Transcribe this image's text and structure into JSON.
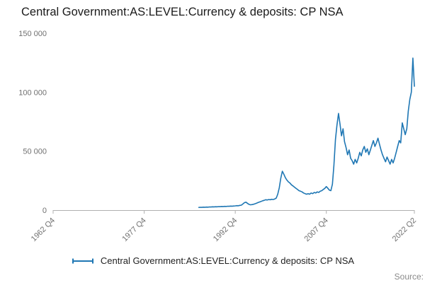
{
  "title": "Central Government:AS:LEVEL:Currency & deposits: CP NSA",
  "legend": {
    "label": "Central Government:AS:LEVEL:Currency & deposits: CP NSA"
  },
  "source_label": "Source:",
  "colors": {
    "line": "#1f77b4",
    "axis": "#b0b0b0",
    "tick_text": "#707070",
    "title_text": "#1a1a1a"
  },
  "chart_data": {
    "type": "line",
    "title": "Central Government:AS:LEVEL:Currency & deposits: CP NSA",
    "xlabel": "",
    "ylabel": "",
    "grid": false,
    "legend_position": "bottom",
    "xlim": [
      1962.75,
      2022.25
    ],
    "ylim": [
      0,
      150000
    ],
    "xticks": {
      "values": [
        1962.75,
        1977.75,
        1992.75,
        2007.75,
        2022.25
      ],
      "labels": [
        "1962 Q4",
        "1977 Q4",
        "1992 Q4",
        "2007 Q4",
        "2022 Q2"
      ]
    },
    "yticks": {
      "values": [
        0,
        50000,
        100000,
        150000
      ],
      "labels": [
        "0",
        "50 000",
        "100 000",
        "150 000"
      ]
    },
    "series": [
      {
        "name": "Central Government:AS:LEVEL:Currency & deposits: CP NSA",
        "points": [
          [
            1986.75,
            2300
          ],
          [
            1987.0,
            2400
          ],
          [
            1987.25,
            2350
          ],
          [
            1987.5,
            2500
          ],
          [
            1987.75,
            2450
          ],
          [
            1988.0,
            2600
          ],
          [
            1988.25,
            2550
          ],
          [
            1988.5,
            2700
          ],
          [
            1988.75,
            2650
          ],
          [
            1989.0,
            2800
          ],
          [
            1989.25,
            2750
          ],
          [
            1989.5,
            2900
          ],
          [
            1989.75,
            2850
          ],
          [
            1990.0,
            3000
          ],
          [
            1990.25,
            2950
          ],
          [
            1990.5,
            3100
          ],
          [
            1990.75,
            3050
          ],
          [
            1991.0,
            3200
          ],
          [
            1991.25,
            3150
          ],
          [
            1991.5,
            3300
          ],
          [
            1991.75,
            3250
          ],
          [
            1992.0,
            3400
          ],
          [
            1992.25,
            3350
          ],
          [
            1992.5,
            3500
          ],
          [
            1992.75,
            3600
          ],
          [
            1993.0,
            3800
          ],
          [
            1993.25,
            3700
          ],
          [
            1993.5,
            4000
          ],
          [
            1993.75,
            4200
          ],
          [
            1994.0,
            5200
          ],
          [
            1994.25,
            6300
          ],
          [
            1994.5,
            6800
          ],
          [
            1994.75,
            5800
          ],
          [
            1995.0,
            4900
          ],
          [
            1995.25,
            4500
          ],
          [
            1995.5,
            4700
          ],
          [
            1995.75,
            5000
          ],
          [
            1996.0,
            5400
          ],
          [
            1996.25,
            5900
          ],
          [
            1996.5,
            6400
          ],
          [
            1996.75,
            6900
          ],
          [
            1997.0,
            7400
          ],
          [
            1997.25,
            7900
          ],
          [
            1997.5,
            8300
          ],
          [
            1997.75,
            8800
          ],
          [
            1998.0,
            8600
          ],
          [
            1998.25,
            9000
          ],
          [
            1998.5,
            8800
          ],
          [
            1998.75,
            9200
          ],
          [
            1999.0,
            9000
          ],
          [
            1999.25,
            9500
          ],
          [
            1999.5,
            10200
          ],
          [
            1999.75,
            13500
          ],
          [
            2000.0,
            19000
          ],
          [
            2000.25,
            27000
          ],
          [
            2000.5,
            33000
          ],
          [
            2000.75,
            30500
          ],
          [
            2001.0,
            27500
          ],
          [
            2001.25,
            25500
          ],
          [
            2001.5,
            24000
          ],
          [
            2001.75,
            23000
          ],
          [
            2002.0,
            21500
          ],
          [
            2002.25,
            20500
          ],
          [
            2002.5,
            19500
          ],
          [
            2002.75,
            18500
          ],
          [
            2003.0,
            17500
          ],
          [
            2003.25,
            16500
          ],
          [
            2003.5,
            16000
          ],
          [
            2003.75,
            15500
          ],
          [
            2004.0,
            14500
          ],
          [
            2004.25,
            14000
          ],
          [
            2004.5,
            13500
          ],
          [
            2004.75,
            14000
          ],
          [
            2005.0,
            13500
          ],
          [
            2005.25,
            14500
          ],
          [
            2005.5,
            14000
          ],
          [
            2005.75,
            15000
          ],
          [
            2006.0,
            14500
          ],
          [
            2006.25,
            15500
          ],
          [
            2006.5,
            15000
          ],
          [
            2006.75,
            16000
          ],
          [
            2007.0,
            16500
          ],
          [
            2007.25,
            17500
          ],
          [
            2007.5,
            18500
          ],
          [
            2007.75,
            20000
          ],
          [
            2008.0,
            18500
          ],
          [
            2008.25,
            17000
          ],
          [
            2008.5,
            16500
          ],
          [
            2008.75,
            22000
          ],
          [
            2009.0,
            38000
          ],
          [
            2009.25,
            60000
          ],
          [
            2009.5,
            72000
          ],
          [
            2009.75,
            82000
          ],
          [
            2010.0,
            73000
          ],
          [
            2010.25,
            63000
          ],
          [
            2010.5,
            69000
          ],
          [
            2010.75,
            58000
          ],
          [
            2011.0,
            53000
          ],
          [
            2011.25,
            47000
          ],
          [
            2011.5,
            51000
          ],
          [
            2011.75,
            44000
          ],
          [
            2012.0,
            42000
          ],
          [
            2012.25,
            39000
          ],
          [
            2012.5,
            43000
          ],
          [
            2012.75,
            40000
          ],
          [
            2013.0,
            44000
          ],
          [
            2013.25,
            49000
          ],
          [
            2013.5,
            46000
          ],
          [
            2013.75,
            51000
          ],
          [
            2014.0,
            54000
          ],
          [
            2014.25,
            49000
          ],
          [
            2014.5,
            52000
          ],
          [
            2014.75,
            47000
          ],
          [
            2015.0,
            51000
          ],
          [
            2015.25,
            55000
          ],
          [
            2015.5,
            59000
          ],
          [
            2015.75,
            54000
          ],
          [
            2016.0,
            57000
          ],
          [
            2016.25,
            61000
          ],
          [
            2016.5,
            56000
          ],
          [
            2016.75,
            51000
          ],
          [
            2017.0,
            47000
          ],
          [
            2017.25,
            44000
          ],
          [
            2017.5,
            41000
          ],
          [
            2017.75,
            45000
          ],
          [
            2018.0,
            42000
          ],
          [
            2018.25,
            39000
          ],
          [
            2018.5,
            43000
          ],
          [
            2018.75,
            40000
          ],
          [
            2019.0,
            44000
          ],
          [
            2019.25,
            49000
          ],
          [
            2019.5,
            54000
          ],
          [
            2019.75,
            59000
          ],
          [
            2020.0,
            57000
          ],
          [
            2020.25,
            74000
          ],
          [
            2020.5,
            69000
          ],
          [
            2020.75,
            64000
          ],
          [
            2021.0,
            69000
          ],
          [
            2021.25,
            84000
          ],
          [
            2021.5,
            94000
          ],
          [
            2021.75,
            100000
          ],
          [
            2022.0,
            129000
          ],
          [
            2022.25,
            105000
          ]
        ]
      }
    ]
  }
}
